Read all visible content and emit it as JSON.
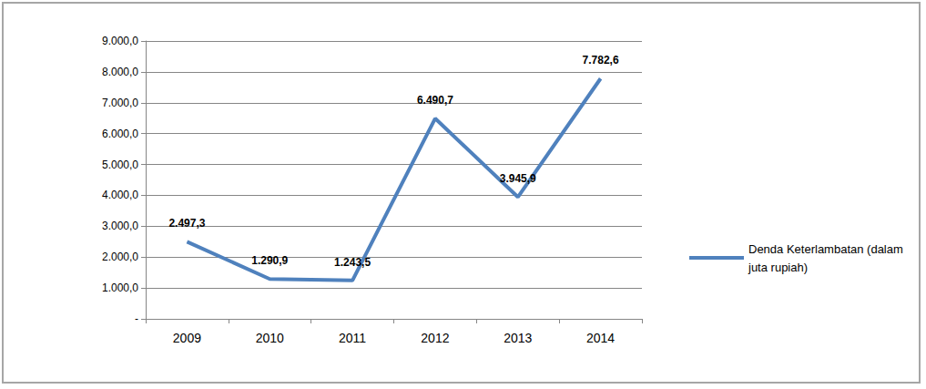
{
  "chart_data": {
    "type": "line",
    "categories": [
      "2009",
      "2010",
      "2011",
      "2012",
      "2013",
      "2014"
    ],
    "series": [
      {
        "name": "Denda Keterlambatan (dalam juta rupiah)",
        "color": "#4f81bd",
        "values": [
          2497.3,
          1290.9,
          1243.5,
          6490.7,
          3945.9,
          7782.6
        ],
        "value_labels": [
          "2.497,3",
          "1.290,9",
          "1.243,5",
          "6.490,7",
          "3.945,9",
          "7.782,6"
        ]
      }
    ],
    "ylim": [
      0,
      9000
    ],
    "yticks": [
      {
        "value": 0,
        "label": "-"
      },
      {
        "value": 1000,
        "label": "1.000,0"
      },
      {
        "value": 2000,
        "label": "2.000,0"
      },
      {
        "value": 3000,
        "label": "3.000,0"
      },
      {
        "value": 4000,
        "label": "4.000,0"
      },
      {
        "value": 5000,
        "label": "5.000,0"
      },
      {
        "value": 6000,
        "label": "6.000,0"
      },
      {
        "value": 7000,
        "label": "7.000,0"
      },
      {
        "value": 8000,
        "label": "8.000,0"
      },
      {
        "value": 9000,
        "label": "9.000,0"
      }
    ],
    "grid": true,
    "data_labels": true,
    "legend": "right"
  }
}
